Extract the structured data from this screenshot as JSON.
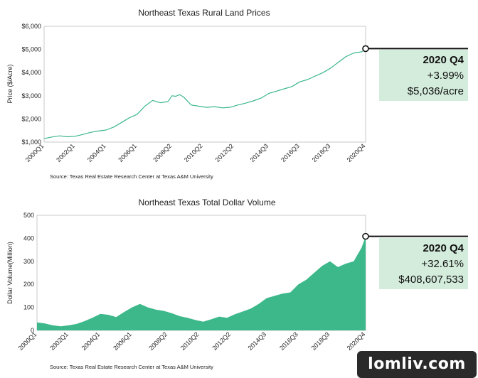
{
  "chart_data": [
    {
      "type": "line",
      "title": "Northeast Texas Rural Land Prices",
      "xlabel": "",
      "ylabel": "Price ($/Acre)",
      "ylim": [
        1000,
        6000
      ],
      "yticks": [
        "$1,000",
        "$2,000",
        "$3,000",
        "$4,000",
        "$5,000",
        "$6,000"
      ],
      "yticks_values": [
        1000,
        2000,
        3000,
        4000,
        5000,
        6000
      ],
      "xticks": [
        "2000Q1",
        "2002Q1",
        "2004Q1",
        "2006Q1",
        "2008Q2",
        "2010Q2",
        "2012Q2",
        "2014Q3",
        "2016Q3",
        "2018Q3",
        "2020Q4"
      ],
      "xticks_values": [
        2000.0,
        2002.0,
        2004.0,
        2006.0,
        2008.25,
        2010.25,
        2012.25,
        2014.5,
        2016.5,
        2018.5,
        2020.75
      ],
      "grid": false,
      "source": "Source: Texas Real Estate Research Center at Texas A&M University",
      "color": "#3cb88a",
      "series": [
        {
          "x": [
            2000.0,
            2000.5,
            2001.0,
            2001.5,
            2002.0,
            2002.5,
            2003.0,
            2003.5,
            2004.0,
            2004.5,
            2005.0,
            2005.5,
            2006.0,
            2006.5,
            2007.0,
            2007.5,
            2008.0,
            2008.25,
            2008.5,
            2008.75,
            2009.0,
            2009.5,
            2010.0,
            2010.5,
            2011.0,
            2011.5,
            2012.0,
            2012.5,
            2013.0,
            2013.5,
            2014.0,
            2014.5,
            2015.0,
            2015.5,
            2016.0,
            2016.5,
            2017.0,
            2017.5,
            2018.0,
            2018.5,
            2019.0,
            2019.5,
            2020.0,
            2020.5,
            2020.75
          ],
          "values": [
            1150,
            1220,
            1270,
            1230,
            1250,
            1330,
            1420,
            1480,
            1520,
            1650,
            1850,
            2050,
            2200,
            2550,
            2800,
            2700,
            2750,
            3000,
            2980,
            3050,
            2950,
            2600,
            2550,
            2500,
            2530,
            2480,
            2500,
            2600,
            2680,
            2780,
            2900,
            3100,
            3200,
            3300,
            3400,
            3600,
            3700,
            3850,
            4000,
            4200,
            4450,
            4700,
            4850,
            4900,
            5036
          ]
        }
      ],
      "callout": {
        "period": "2020 Q4",
        "change": "+3.99%",
        "value": "$5,036/acre"
      }
    },
    {
      "type": "area",
      "title": "Northeast Texas Total Dollar Volume",
      "xlabel": "",
      "ylabel": "Dollar Volume(Million)",
      "ylim": [
        0,
        500
      ],
      "yticks": [
        "0",
        "100",
        "200",
        "300",
        "400",
        "500"
      ],
      "yticks_values": [
        0,
        100,
        200,
        300,
        400,
        500
      ],
      "xticks": [
        "2000Q1",
        "2002Q1",
        "2004Q1",
        "2006Q1",
        "2008Q2",
        "2010Q2",
        "2012Q2",
        "2014Q3",
        "2016Q3",
        "2018Q3",
        "2020Q4"
      ],
      "xticks_values": [
        2000.0,
        2002.0,
        2004.0,
        2006.0,
        2008.25,
        2010.25,
        2012.25,
        2014.5,
        2016.5,
        2018.5,
        2020.75
      ],
      "grid": false,
      "source": "Source: Texas Real Estate Research Center at Texas A&M University",
      "color": "#3cb88a",
      "series": [
        {
          "x": [
            2000.0,
            2000.5,
            2001.0,
            2001.5,
            2002.0,
            2002.5,
            2003.0,
            2003.5,
            2004.0,
            2004.5,
            2005.0,
            2005.5,
            2006.0,
            2006.5,
            2007.0,
            2007.5,
            2008.0,
            2008.5,
            2009.0,
            2009.5,
            2010.0,
            2010.5,
            2011.0,
            2011.5,
            2012.0,
            2012.5,
            2013.0,
            2013.5,
            2014.0,
            2014.5,
            2015.0,
            2015.5,
            2016.0,
            2016.5,
            2017.0,
            2017.5,
            2018.0,
            2018.5,
            2019.0,
            2019.5,
            2020.0,
            2020.5,
            2020.75
          ],
          "values": [
            35,
            30,
            22,
            18,
            22,
            28,
            40,
            55,
            72,
            68,
            58,
            80,
            100,
            115,
            100,
            90,
            85,
            75,
            62,
            55,
            45,
            38,
            48,
            60,
            55,
            70,
            82,
            95,
            115,
            140,
            150,
            160,
            165,
            200,
            220,
            250,
            280,
            300,
            275,
            290,
            300,
            360,
            408.6
          ]
        }
      ],
      "callout": {
        "period": "2020 Q4",
        "change": "+32.61%",
        "value": "$408,607,533"
      }
    }
  ],
  "watermark": "lomliv.com"
}
